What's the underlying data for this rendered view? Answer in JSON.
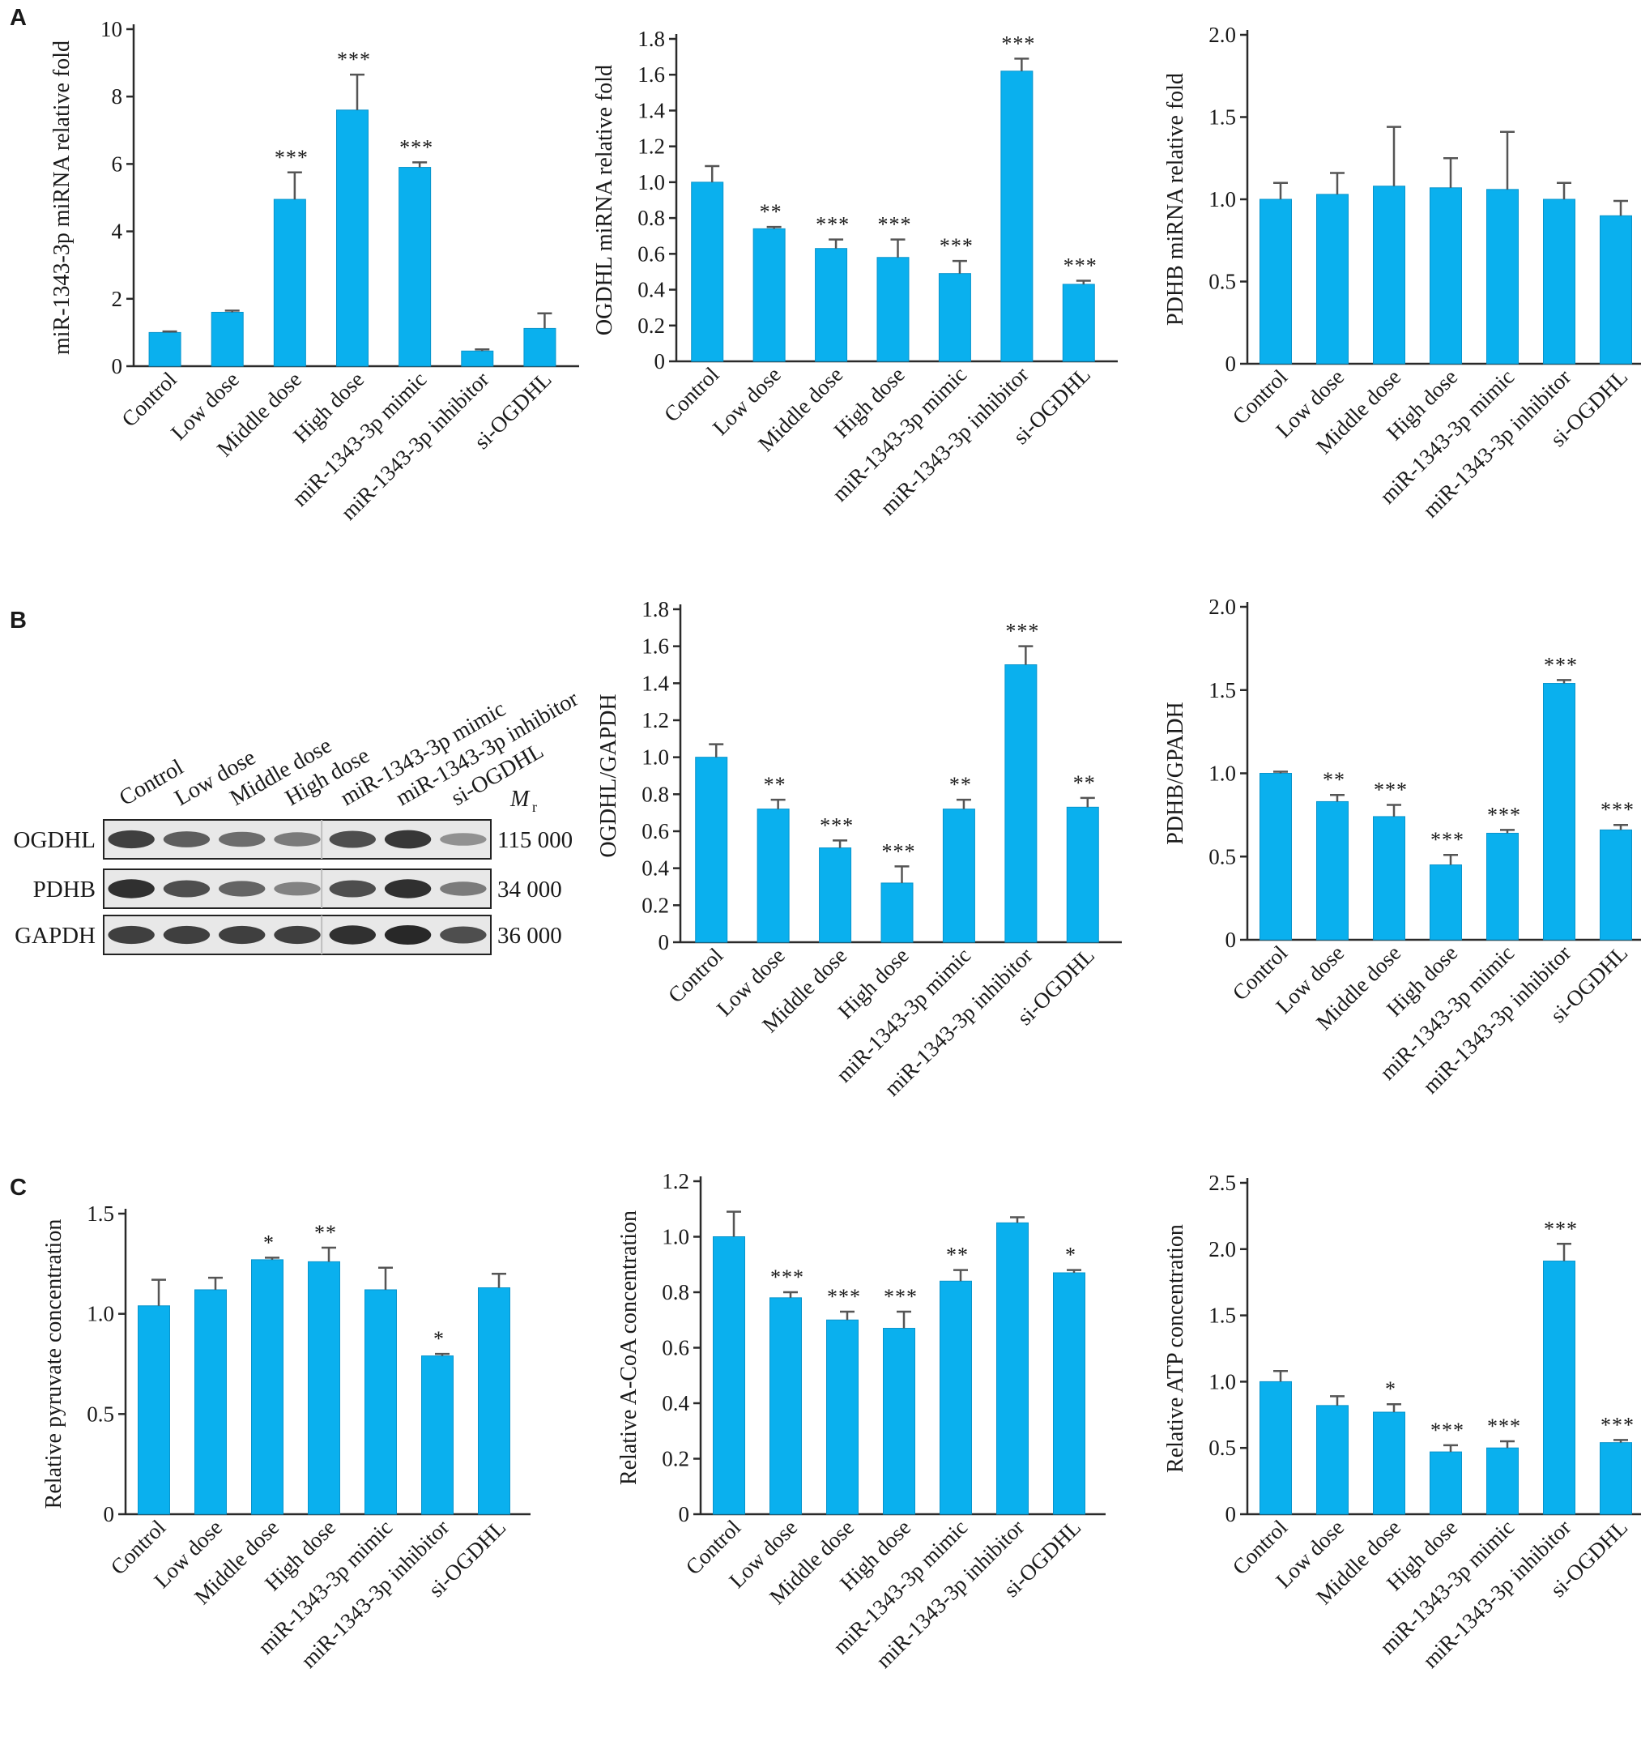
{
  "panels": {
    "a": "A",
    "b": "B",
    "c": "C"
  },
  "colors": {
    "bar": "#0AB0EE",
    "bar_edge": "#0894CC",
    "axis": "#2a2a2a",
    "error": "#555555"
  },
  "categories": [
    "Control",
    "Low dose",
    "Middle dose",
    "High dose",
    "miR-1343-3p mimic",
    "miR-1343-3p inhibitor",
    "si-OGDHL"
  ],
  "blot": {
    "lane_labels": [
      "Control",
      "Low dose",
      "Middle dose",
      "High dose",
      "miR-1343-3p mimic",
      "miR-1343-3p inhibitor",
      "si-OGDHL"
    ],
    "mr_label": "M",
    "mr_sub": "r",
    "rows": [
      {
        "name": "OGDHL",
        "mr": "115 000",
        "intensity": [
          0.85,
          0.65,
          0.55,
          0.45,
          0.75,
          0.9,
          0.3
        ]
      },
      {
        "name": "PDHB",
        "mr": "34 000",
        "intensity": [
          0.95,
          0.75,
          0.6,
          0.4,
          0.75,
          0.95,
          0.45
        ]
      },
      {
        "name": "GAPDH",
        "mr": "36 000",
        "intensity": [
          0.85,
          0.85,
          0.85,
          0.85,
          0.95,
          1.0,
          0.75
        ]
      }
    ]
  },
  "chart_data": [
    {
      "type": "bar",
      "title": "",
      "xlabel": "",
      "ylabel": "miR-1343-3p miRNA relative fold",
      "categories": [
        "Control",
        "Low dose",
        "Middle dose",
        "High dose",
        "miR-1343-3p mimic",
        "miR-1343-3p inhibitor",
        "si-OGDHL"
      ],
      "values": [
        1.0,
        1.6,
        4.95,
        7.6,
        5.9,
        0.45,
        1.12
      ],
      "errors": [
        0.03,
        0.05,
        0.8,
        1.05,
        0.15,
        0.05,
        0.45
      ],
      "significance": [
        "",
        "",
        "***",
        "***",
        "***",
        "",
        ""
      ],
      "ylim": [
        0,
        10
      ],
      "yticks": [
        "0",
        "2",
        "4",
        "6",
        "8",
        "10"
      ]
    },
    {
      "type": "bar",
      "title": "",
      "xlabel": "",
      "ylabel": "OGDHL miRNA relative fold",
      "categories": [
        "Control",
        "Low dose",
        "Middle dose",
        "High dose",
        "miR-1343-3p mimic",
        "miR-1343-3p inhibitor",
        "si-OGDHL"
      ],
      "values": [
        1.0,
        0.74,
        0.63,
        0.58,
        0.49,
        1.62,
        0.43
      ],
      "errors": [
        0.09,
        0.01,
        0.05,
        0.1,
        0.07,
        0.07,
        0.02
      ],
      "significance": [
        "",
        "**",
        "***",
        "***",
        "***",
        "***",
        "***"
      ],
      "ylim": [
        0,
        1.8
      ],
      "yticks": [
        "0",
        "0.2",
        "0.4",
        "0.6",
        "0.8",
        "1.0",
        "1.2",
        "1.4",
        "1.6",
        "1.8"
      ]
    },
    {
      "type": "bar",
      "title": "",
      "xlabel": "",
      "ylabel": "PDHB miRNA relative fold",
      "categories": [
        "Control",
        "Low dose",
        "Middle dose",
        "High dose",
        "miR-1343-3p mimic",
        "miR-1343-3p inhibitor",
        "si-OGDHL"
      ],
      "values": [
        1.0,
        1.03,
        1.08,
        1.07,
        1.06,
        1.0,
        0.9
      ],
      "errors": [
        0.1,
        0.13,
        0.36,
        0.18,
        0.35,
        0.1,
        0.09
      ],
      "significance": [
        "",
        "",
        "",
        "",
        "",
        "",
        ""
      ],
      "ylim": [
        0,
        2.0
      ],
      "yticks": [
        "0",
        "0.5",
        "1.0",
        "1.5",
        "2.0"
      ]
    },
    {
      "type": "bar",
      "title": "",
      "xlabel": "",
      "ylabel": "OGDHL/GAPDH",
      "categories": [
        "Control",
        "Low dose",
        "Middle dose",
        "High dose",
        "miR-1343-3p mimic",
        "miR-1343-3p inhibitor",
        "si-OGDHL"
      ],
      "values": [
        1.0,
        0.72,
        0.51,
        0.32,
        0.72,
        1.5,
        0.73
      ],
      "errors": [
        0.07,
        0.05,
        0.04,
        0.09,
        0.05,
        0.1,
        0.05
      ],
      "significance": [
        "",
        "**",
        "***",
        "***",
        "**",
        "***",
        "**"
      ],
      "ylim": [
        0,
        1.8
      ],
      "yticks": [
        "0",
        "0.2",
        "0.4",
        "0.6",
        "0.8",
        "1.0",
        "1.2",
        "1.4",
        "1.6",
        "1.8"
      ]
    },
    {
      "type": "bar",
      "title": "",
      "xlabel": "",
      "ylabel": "PDHB/GPADH",
      "categories": [
        "Control",
        "Low dose",
        "Middle dose",
        "High dose",
        "miR-1343-3p mimic",
        "miR-1343-3p inhibitor",
        "si-OGDHL"
      ],
      "values": [
        1.0,
        0.83,
        0.74,
        0.45,
        0.64,
        1.54,
        0.66
      ],
      "errors": [
        0.01,
        0.04,
        0.07,
        0.06,
        0.02,
        0.02,
        0.03
      ],
      "significance": [
        "",
        "**",
        "***",
        "***",
        "***",
        "***",
        "***"
      ],
      "ylim": [
        0,
        2.0
      ],
      "yticks": [
        "0",
        "0.5",
        "1.0",
        "1.5",
        "2.0"
      ]
    },
    {
      "type": "bar",
      "title": "",
      "xlabel": "",
      "ylabel": "Relative pyruvate concentration",
      "categories": [
        "Control",
        "Low dose",
        "Middle dose",
        "High dose",
        "miR-1343-3p mimic",
        "miR-1343-3p inhibitor",
        "si-OGDHL"
      ],
      "values": [
        1.04,
        1.12,
        1.27,
        1.26,
        1.12,
        0.79,
        1.13
      ],
      "errors": [
        0.13,
        0.06,
        0.01,
        0.07,
        0.11,
        0.01,
        0.07
      ],
      "significance": [
        "",
        "",
        "*",
        "**",
        "",
        "*",
        ""
      ],
      "ylim": [
        0,
        1.5
      ],
      "yticks": [
        "0",
        "0.5",
        "1.0",
        "1.5"
      ]
    },
    {
      "type": "bar",
      "title": "",
      "xlabel": "",
      "ylabel": "Relative A-CoA concentration",
      "categories": [
        "Control",
        "Low dose",
        "Middle dose",
        "High dose",
        "miR-1343-3p mimic",
        "miR-1343-3p inhibitor",
        "si-OGDHL"
      ],
      "values": [
        1.0,
        0.78,
        0.7,
        0.67,
        0.84,
        1.05,
        0.87
      ],
      "errors": [
        0.09,
        0.02,
        0.03,
        0.06,
        0.04,
        0.02,
        0.01
      ],
      "significance": [
        "",
        "***",
        "***",
        "***",
        "**",
        "",
        "*"
      ],
      "ylim": [
        0,
        1.2
      ],
      "yticks": [
        "0",
        "0.2",
        "0.4",
        "0.6",
        "0.8",
        "1.0",
        "1.2"
      ]
    },
    {
      "type": "bar",
      "title": "",
      "xlabel": "",
      "ylabel": "Relative ATP concentration",
      "categories": [
        "Control",
        "Low dose",
        "Middle dose",
        "High dose",
        "miR-1343-3p mimic",
        "miR-1343-3p inhibitor",
        "si-OGDHL"
      ],
      "values": [
        1.0,
        0.82,
        0.77,
        0.47,
        0.5,
        1.91,
        0.54
      ],
      "errors": [
        0.08,
        0.07,
        0.06,
        0.05,
        0.05,
        0.13,
        0.02
      ],
      "significance": [
        "",
        "",
        "*",
        "***",
        "***",
        "***",
        "***"
      ],
      "ylim": [
        0,
        2.5
      ],
      "yticks": [
        "0",
        "0.5",
        "1.0",
        "1.5",
        "2.0",
        "2.5"
      ]
    }
  ]
}
